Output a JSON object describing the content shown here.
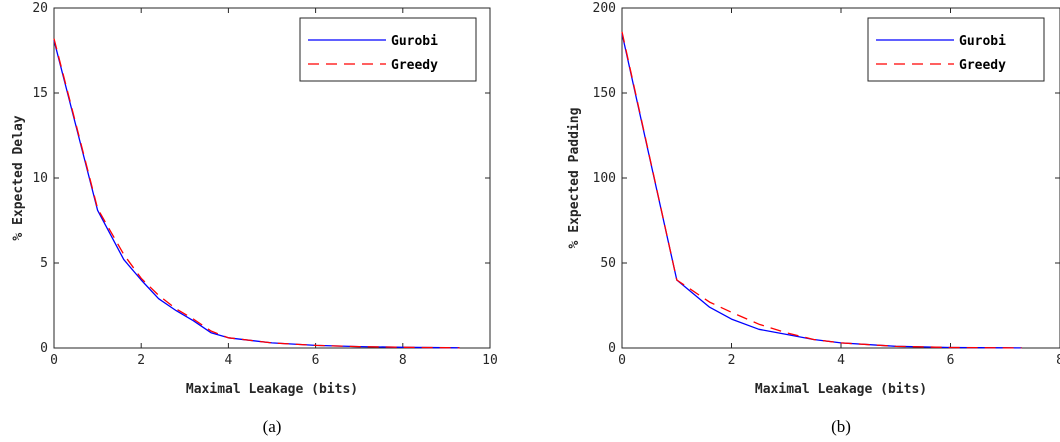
{
  "chart_data": [
    {
      "type": "line",
      "xlabel": "Maximal Leakage (bits)",
      "ylabel": "% Expected Delay",
      "xlim": [
        0,
        10
      ],
      "ylim": [
        0,
        20
      ],
      "xticks": [
        0,
        2,
        4,
        6,
        8,
        10
      ],
      "yticks": [
        0,
        5,
        10,
        15,
        20
      ],
      "grid": false,
      "legend": "top-right",
      "caption": "(a)",
      "series": [
        {
          "name": "Gurobi",
          "color": "#0000ff",
          "dash": "solid",
          "x": [
            0,
            1,
            1.6,
            2.0,
            2.4,
            2.8,
            3.2,
            3.6,
            4.0,
            5.0,
            6.0,
            7.0,
            8.0,
            9.0,
            9.3
          ],
          "y": [
            18.1,
            8.1,
            5.2,
            4.0,
            2.9,
            2.2,
            1.6,
            0.9,
            0.6,
            0.3,
            0.15,
            0.08,
            0.04,
            0.02,
            0.01
          ]
        },
        {
          "name": "Greedy",
          "color": "#ff0000",
          "dash": "dashed",
          "x": [
            0,
            1,
            1.6,
            2.0,
            2.4,
            2.8,
            3.2,
            3.6,
            4.0,
            5.0,
            6.0,
            7.0,
            8.0,
            9.0,
            9.3
          ],
          "y": [
            18.2,
            8.2,
            5.5,
            4.1,
            3.1,
            2.3,
            1.7,
            1.0,
            0.6,
            0.3,
            0.15,
            0.08,
            0.04,
            0.02,
            0.01
          ]
        }
      ]
    },
    {
      "type": "line",
      "xlabel": "Maximal Leakage (bits)",
      "ylabel": "% Expected Padding",
      "xlim": [
        0,
        8
      ],
      "ylim": [
        0,
        200
      ],
      "xticks": [
        0,
        2,
        4,
        6,
        8
      ],
      "yticks": [
        0,
        50,
        100,
        150,
        200
      ],
      "grid": false,
      "legend": "top-right",
      "caption": "(b)",
      "series": [
        {
          "name": "Gurobi",
          "color": "#0000ff",
          "dash": "solid",
          "x": [
            0,
            1,
            1.6,
            2.0,
            2.5,
            3.0,
            3.5,
            4.0,
            5.0,
            6.0,
            7.0,
            7.3
          ],
          "y": [
            185,
            40,
            24,
            17,
            11,
            8,
            5,
            3,
            1,
            0.3,
            0.1,
            0.05
          ]
        },
        {
          "name": "Greedy",
          "color": "#ff0000",
          "dash": "dashed",
          "x": [
            0,
            1,
            1.6,
            2.0,
            2.5,
            3.0,
            3.5,
            4.0,
            5.0,
            6.0,
            7.0,
            7.3
          ],
          "y": [
            186,
            40,
            27,
            21,
            14,
            9,
            5,
            3,
            1,
            0.3,
            0.1,
            0.05
          ]
        }
      ]
    }
  ]
}
